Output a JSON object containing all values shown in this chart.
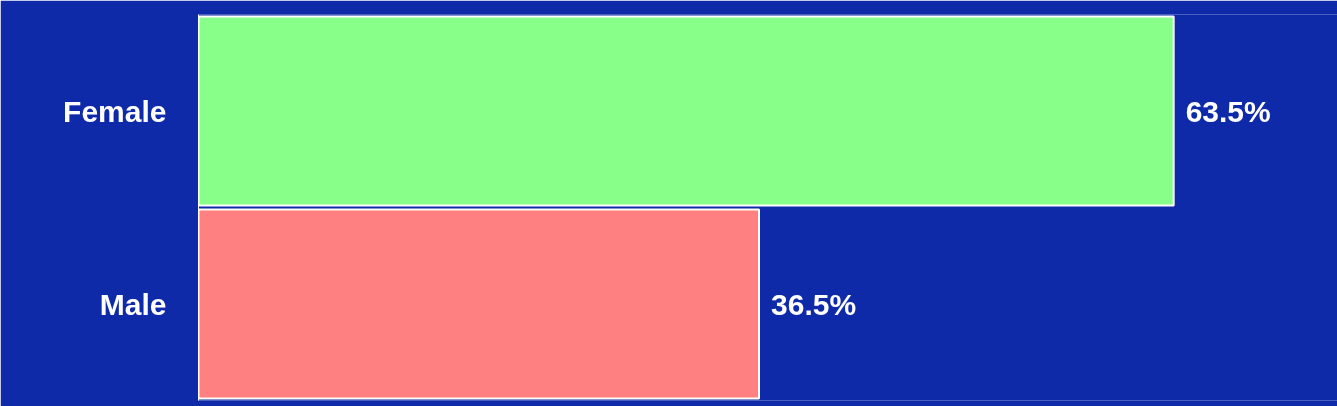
{
  "chart_data": {
    "type": "bar",
    "orientation": "horizontal",
    "categories": [
      "Female",
      "Male"
    ],
    "values": [
      63.5,
      36.5
    ],
    "colors": [
      "#88ff88",
      "#ff8080"
    ],
    "value_labels": [
      "63.5%",
      "36.5%"
    ],
    "tick_labels": "y",
    "grid": false
  }
}
